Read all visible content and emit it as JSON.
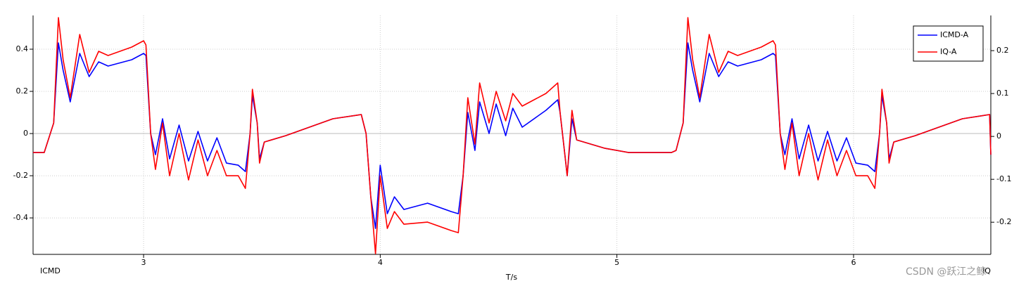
{
  "chart_data": {
    "type": "line",
    "xlabel": "T/s",
    "ylabel": "ICMD",
    "y2label": "IQ",
    "watermark": "CSDN @跃江之鲸",
    "xlim": [
      2.533,
      6.58
    ],
    "xticks": [
      3,
      4,
      5,
      6
    ],
    "ylim": [
      -0.573,
      0.56
    ],
    "yticks": [
      -0.4,
      -0.2,
      0,
      0.2,
      0.4
    ],
    "y2lim": [
      -0.275,
      0.282
    ],
    "y2ticks": [
      -0.2,
      -0.1,
      0,
      0.1,
      0.2
    ],
    "grid": true,
    "legend": "upper right",
    "x": [
      2.533,
      2.58,
      2.62,
      2.64,
      2.66,
      2.69,
      2.73,
      2.77,
      2.81,
      2.85,
      2.95,
      3.0,
      3.01,
      3.03,
      3.05,
      3.08,
      3.11,
      3.15,
      3.19,
      3.23,
      3.27,
      3.31,
      3.35,
      3.4,
      3.43,
      3.45,
      3.46,
      3.48,
      3.49,
      3.51,
      3.6,
      3.8,
      3.92,
      3.94,
      3.96,
      3.98,
      4.0,
      4.03,
      4.06,
      4.1,
      4.2,
      4.3,
      4.33,
      4.35,
      4.37,
      4.4,
      4.42,
      4.46,
      4.49,
      4.53,
      4.56,
      4.6,
      4.7,
      4.75,
      4.76,
      4.78,
      4.79,
      4.81,
      4.83,
      4.95,
      5.05,
      5.23,
      5.25,
      5.28,
      5.3,
      5.32,
      5.35,
      5.39,
      5.43,
      5.47,
      5.51,
      5.61,
      5.66,
      5.67,
      5.69,
      5.71,
      5.74,
      5.77,
      5.81,
      5.85,
      5.89,
      5.93,
      5.97,
      6.01,
      6.06,
      6.09,
      6.11,
      6.12,
      6.14,
      6.15,
      6.17,
      6.26,
      6.46,
      6.575,
      6.58
    ],
    "series": [
      {
        "name": "ICMD-A",
        "color": "#0000ff",
        "values": [
          -0.09,
          -0.09,
          0.05,
          0.43,
          0.3,
          0.15,
          0.38,
          0.27,
          0.34,
          0.32,
          0.35,
          0.38,
          0.37,
          0,
          -0.1,
          0.07,
          -0.12,
          0.04,
          -0.13,
          0.01,
          -0.13,
          -0.02,
          -0.14,
          -0.15,
          -0.18,
          0,
          0.18,
          0.05,
          -0.12,
          -0.04,
          -0.01,
          0.07,
          0.09,
          0,
          -0.3,
          -0.45,
          -0.15,
          -0.38,
          -0.3,
          -0.36,
          -0.33,
          -0.37,
          -0.38,
          -0.2,
          0.1,
          -0.08,
          0.15,
          0,
          0.14,
          -0.01,
          0.12,
          0.03,
          0.11,
          0.16,
          0.1,
          -0.1,
          -0.2,
          0.07,
          -0.03,
          -0.07,
          -0.09,
          -0.09,
          -0.08,
          0.05,
          0.43,
          0.3,
          0.15,
          0.38,
          0.27,
          0.34,
          0.32,
          0.35,
          0.38,
          0.37,
          0,
          -0.1,
          0.07,
          -0.12,
          0.04,
          -0.13,
          0.01,
          -0.13,
          -0.02,
          -0.14,
          -0.15,
          -0.18,
          0,
          0.18,
          0.05,
          -0.12,
          -0.04,
          -0.01,
          0.07,
          0.09,
          -0.1
        ]
      },
      {
        "name": "IQ-A",
        "color": "#ff0000",
        "values": [
          -0.09,
          -0.09,
          0.05,
          0.55,
          0.35,
          0.17,
          0.47,
          0.29,
          0.39,
          0.37,
          0.41,
          0.44,
          0.42,
          0,
          -0.17,
          0.05,
          -0.2,
          0,
          -0.22,
          -0.03,
          -0.2,
          -0.08,
          -0.2,
          -0.2,
          -0.26,
          0,
          0.21,
          0.05,
          -0.14,
          -0.04,
          -0.01,
          0.07,
          0.09,
          0,
          -0.3,
          -0.57,
          -0.2,
          -0.45,
          -0.37,
          -0.43,
          -0.42,
          -0.46,
          -0.47,
          -0.2,
          0.17,
          -0.05,
          0.24,
          0.05,
          0.2,
          0.06,
          0.19,
          0.13,
          0.19,
          0.24,
          0.1,
          -0.1,
          -0.2,
          0.11,
          -0.03,
          -0.07,
          -0.09,
          -0.09,
          -0.08,
          0.05,
          0.55,
          0.35,
          0.17,
          0.47,
          0.29,
          0.39,
          0.37,
          0.41,
          0.44,
          0.42,
          0,
          -0.17,
          0.05,
          -0.2,
          0,
          -0.22,
          -0.03,
          -0.2,
          -0.08,
          -0.2,
          -0.2,
          -0.26,
          0,
          0.21,
          0.05,
          -0.14,
          -0.04,
          -0.01,
          0.07,
          0.09,
          -0.1
        ]
      }
    ]
  }
}
